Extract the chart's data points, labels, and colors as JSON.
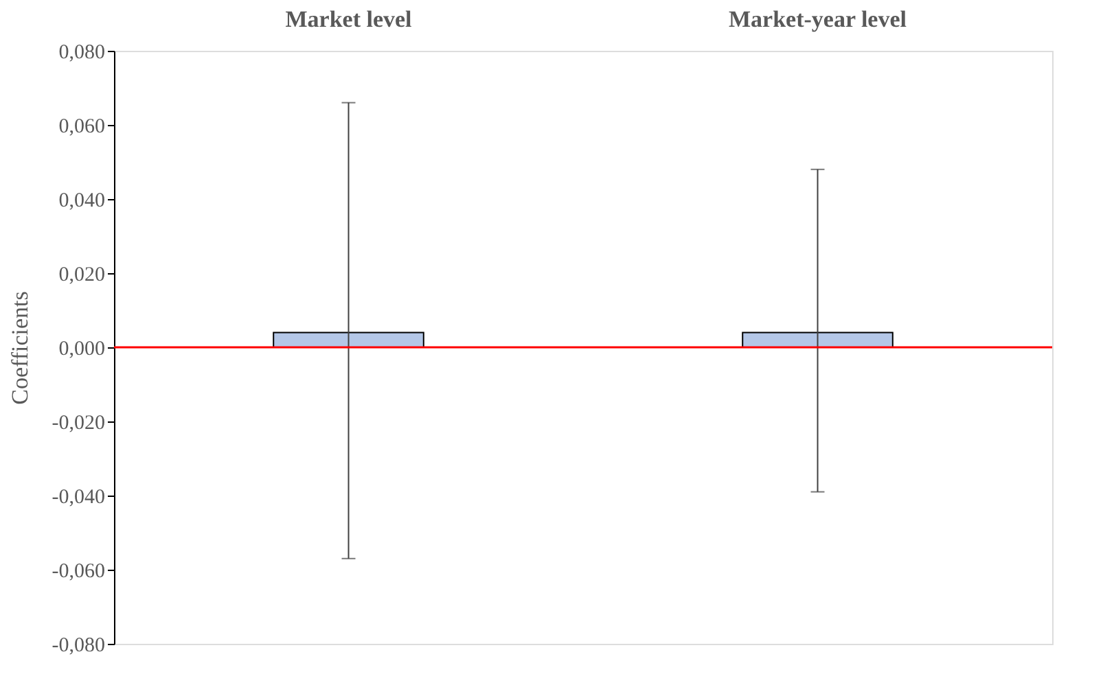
{
  "chart_data": {
    "type": "bar",
    "categories": [
      "Market level",
      "Market-year level"
    ],
    "values": [
      0.004,
      0.004
    ],
    "errors": [
      [
        -0.057,
        0.066
      ],
      [
        -0.039,
        0.048
      ]
    ],
    "color": "#b4c7e7",
    "ylabel": "Coefficients",
    "ylim": [
      -0.08,
      0.08
    ],
    "yticks": [
      {
        "value": -0.08,
        "label": "-0,080"
      },
      {
        "value": -0.06,
        "label": "-0,060"
      },
      {
        "value": -0.04,
        "label": "-0,040"
      },
      {
        "value": -0.02,
        "label": "-0,020"
      },
      {
        "value": 0,
        "label": "0,000"
      },
      {
        "value": 0.02,
        "label": "0,020"
      },
      {
        "value": 0.04,
        "label": "0,040"
      },
      {
        "value": 0.06,
        "label": "0,060"
      },
      {
        "value": 0.08,
        "label": "0,080"
      }
    ],
    "ref_lines": [
      {
        "axis": "y",
        "value": 0,
        "color": "#ff0000"
      }
    ],
    "grid": false
  }
}
